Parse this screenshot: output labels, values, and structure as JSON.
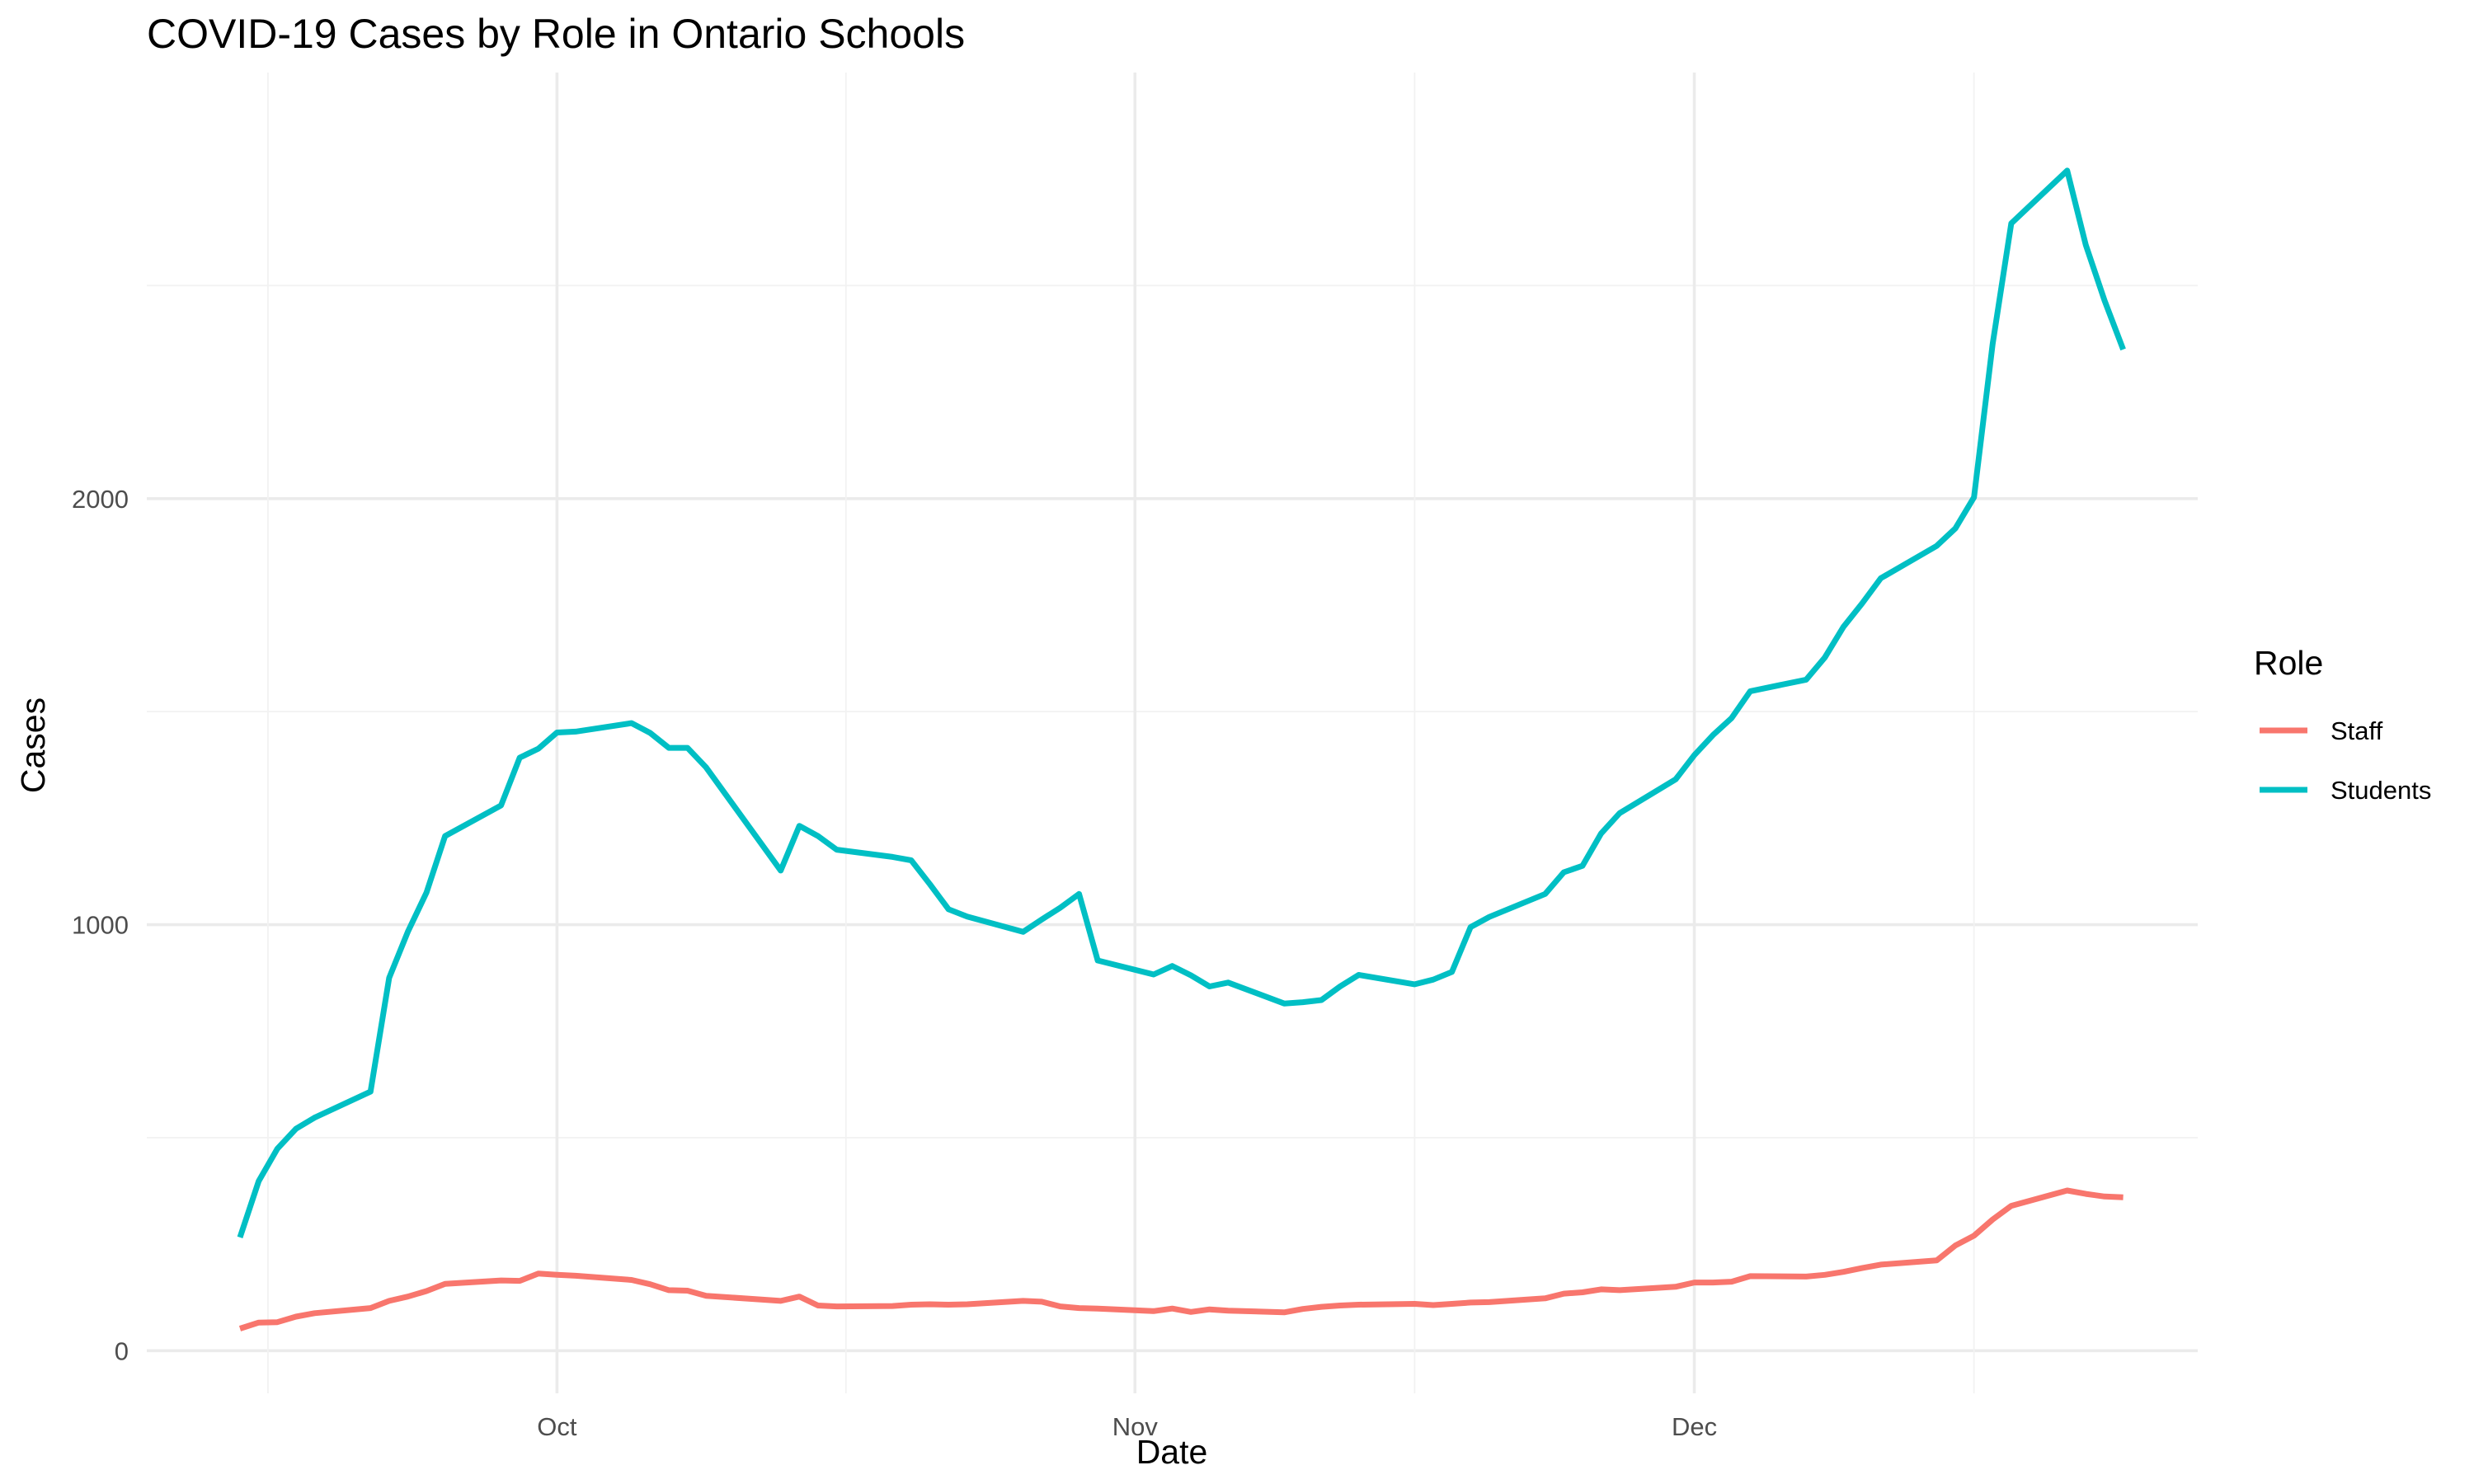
{
  "chart_data": {
    "type": "line",
    "title": "COVID-19 Cases by Role in Ontario Schools",
    "xlabel": "Date",
    "ylabel": "Cases",
    "x_ticks": [
      "Oct",
      "Nov",
      "Dec"
    ],
    "x_tick_dates": [
      "2020-10-01",
      "2020-11-01",
      "2020-12-01"
    ],
    "y_ticks": [
      0,
      1000,
      2000
    ],
    "xlim": [
      "2020-09-09",
      "2020-12-28"
    ],
    "ylim": [
      -100,
      3000
    ],
    "grid": true,
    "legend": {
      "title": "Role",
      "position": "right"
    },
    "series": [
      {
        "name": "Staff",
        "color": "#F8766D",
        "points": [
          [
            "2020-09-14",
            52
          ],
          [
            "2020-09-15",
            66
          ],
          [
            "2020-09-16",
            67
          ],
          [
            "2020-09-17",
            80
          ],
          [
            "2020-09-18",
            88
          ],
          [
            "2020-09-21",
            100
          ],
          [
            "2020-09-22",
            117
          ],
          [
            "2020-09-23",
            127
          ],
          [
            "2020-09-24",
            140
          ],
          [
            "2020-09-25",
            157
          ],
          [
            "2020-09-28",
            165
          ],
          [
            "2020-09-29",
            164
          ],
          [
            "2020-09-30",
            181
          ],
          [
            "2020-10-01",
            178
          ],
          [
            "2020-10-02",
            176
          ],
          [
            "2020-10-05",
            166
          ],
          [
            "2020-10-06",
            156
          ],
          [
            "2020-10-07",
            142
          ],
          [
            "2020-10-08",
            141
          ],
          [
            "2020-10-09",
            129
          ],
          [
            "2020-10-13",
            117
          ],
          [
            "2020-10-14",
            127
          ],
          [
            "2020-10-15",
            106
          ],
          [
            "2020-10-16",
            104
          ],
          [
            "2020-10-19",
            105
          ],
          [
            "2020-10-20",
            108
          ],
          [
            "2020-10-21",
            109
          ],
          [
            "2020-10-22",
            108
          ],
          [
            "2020-10-23",
            109
          ],
          [
            "2020-10-26",
            117
          ],
          [
            "2020-10-27",
            115
          ],
          [
            "2020-10-28",
            104
          ],
          [
            "2020-10-29",
            100
          ],
          [
            "2020-10-30",
            99
          ],
          [
            "2020-11-02",
            93
          ],
          [
            "2020-11-03",
            99
          ],
          [
            "2020-11-04",
            91
          ],
          [
            "2020-11-05",
            97
          ],
          [
            "2020-11-06",
            94
          ],
          [
            "2020-11-09",
            90
          ],
          [
            "2020-11-10",
            98
          ],
          [
            "2020-11-11",
            103
          ],
          [
            "2020-11-12",
            106
          ],
          [
            "2020-11-13",
            108
          ],
          [
            "2020-11-16",
            110
          ],
          [
            "2020-11-17",
            107
          ],
          [
            "2020-11-18",
            110
          ],
          [
            "2020-11-19",
            113
          ],
          [
            "2020-11-20",
            114
          ],
          [
            "2020-11-23",
            123
          ],
          [
            "2020-11-24",
            134
          ],
          [
            "2020-11-25",
            137
          ],
          [
            "2020-11-26",
            144
          ],
          [
            "2020-11-27",
            142
          ],
          [
            "2020-11-30",
            150
          ],
          [
            "2020-12-01",
            160
          ],
          [
            "2020-12-02",
            160
          ],
          [
            "2020-12-03",
            162
          ],
          [
            "2020-12-04",
            175
          ],
          [
            "2020-12-07",
            174
          ],
          [
            "2020-12-08",
            178
          ],
          [
            "2020-12-09",
            185
          ],
          [
            "2020-12-10",
            194
          ],
          [
            "2020-12-11",
            202
          ],
          [
            "2020-12-14",
            212
          ],
          [
            "2020-12-15",
            247
          ],
          [
            "2020-12-16",
            270
          ],
          [
            "2020-12-17",
            308
          ],
          [
            "2020-12-18",
            340
          ],
          [
            "2020-12-21",
            376
          ],
          [
            "2020-12-22",
            368
          ],
          [
            "2020-12-23",
            362
          ],
          [
            "2020-12-24",
            360
          ]
        ]
      },
      {
        "name": "Students",
        "color": "#00BFC4",
        "points": [
          [
            "2020-09-14",
            266
          ],
          [
            "2020-09-15",
            398
          ],
          [
            "2020-09-16",
            474
          ],
          [
            "2020-09-17",
            521
          ],
          [
            "2020-09-18",
            547
          ],
          [
            "2020-09-21",
            608
          ],
          [
            "2020-09-22",
            875
          ],
          [
            "2020-09-23",
            983
          ],
          [
            "2020-09-24",
            1075
          ],
          [
            "2020-09-25",
            1208
          ],
          [
            "2020-09-28",
            1280
          ],
          [
            "2020-09-29",
            1392
          ],
          [
            "2020-09-30",
            1413
          ],
          [
            "2020-10-01",
            1451
          ],
          [
            "2020-10-02",
            1453
          ],
          [
            "2020-10-05",
            1473
          ],
          [
            "2020-10-06",
            1450
          ],
          [
            "2020-10-07",
            1415
          ],
          [
            "2020-10-08",
            1415
          ],
          [
            "2020-10-09",
            1369
          ],
          [
            "2020-10-13",
            1127
          ],
          [
            "2020-10-14",
            1232
          ],
          [
            "2020-10-15",
            1208
          ],
          [
            "2020-10-16",
            1176
          ],
          [
            "2020-10-19",
            1159
          ],
          [
            "2020-10-20",
            1151
          ],
          [
            "2020-10-21",
            1095
          ],
          [
            "2020-10-22",
            1036
          ],
          [
            "2020-10-23",
            1019
          ],
          [
            "2020-10-26",
            983
          ],
          [
            "2020-10-27",
            1012
          ],
          [
            "2020-10-28",
            1040
          ],
          [
            "2020-10-29",
            1072
          ],
          [
            "2020-10-30",
            916
          ],
          [
            "2020-11-02",
            883
          ],
          [
            "2020-11-03",
            903
          ],
          [
            "2020-11-04",
            881
          ],
          [
            "2020-11-05",
            855
          ],
          [
            "2020-11-06",
            864
          ],
          [
            "2020-11-09",
            815
          ],
          [
            "2020-11-10",
            818
          ],
          [
            "2020-11-11",
            823
          ],
          [
            "2020-11-12",
            855
          ],
          [
            "2020-11-13",
            882
          ],
          [
            "2020-11-16",
            860
          ],
          [
            "2020-11-17",
            871
          ],
          [
            "2020-11-18",
            889
          ],
          [
            "2020-11-19",
            994
          ],
          [
            "2020-11-20",
            1018
          ],
          [
            "2020-11-23",
            1072
          ],
          [
            "2020-11-24",
            1123
          ],
          [
            "2020-11-25",
            1138
          ],
          [
            "2020-11-26",
            1214
          ],
          [
            "2020-11-27",
            1262
          ],
          [
            "2020-11-30",
            1341
          ],
          [
            "2020-12-01",
            1398
          ],
          [
            "2020-12-02",
            1445
          ],
          [
            "2020-12-03",
            1485
          ],
          [
            "2020-12-04",
            1548
          ],
          [
            "2020-12-07",
            1575
          ],
          [
            "2020-12-08",
            1627
          ],
          [
            "2020-12-09",
            1699
          ],
          [
            "2020-12-10",
            1754
          ],
          [
            "2020-12-11",
            1813
          ],
          [
            "2020-12-14",
            1889
          ],
          [
            "2020-12-15",
            1930
          ],
          [
            "2020-12-16",
            2003
          ],
          [
            "2020-12-17",
            2363
          ],
          [
            "2020-12-18",
            2646
          ],
          [
            "2020-12-21",
            2770
          ],
          [
            "2020-12-22",
            2595
          ],
          [
            "2020-12-23",
            2465
          ],
          [
            "2020-12-24",
            2350
          ]
        ]
      }
    ]
  }
}
